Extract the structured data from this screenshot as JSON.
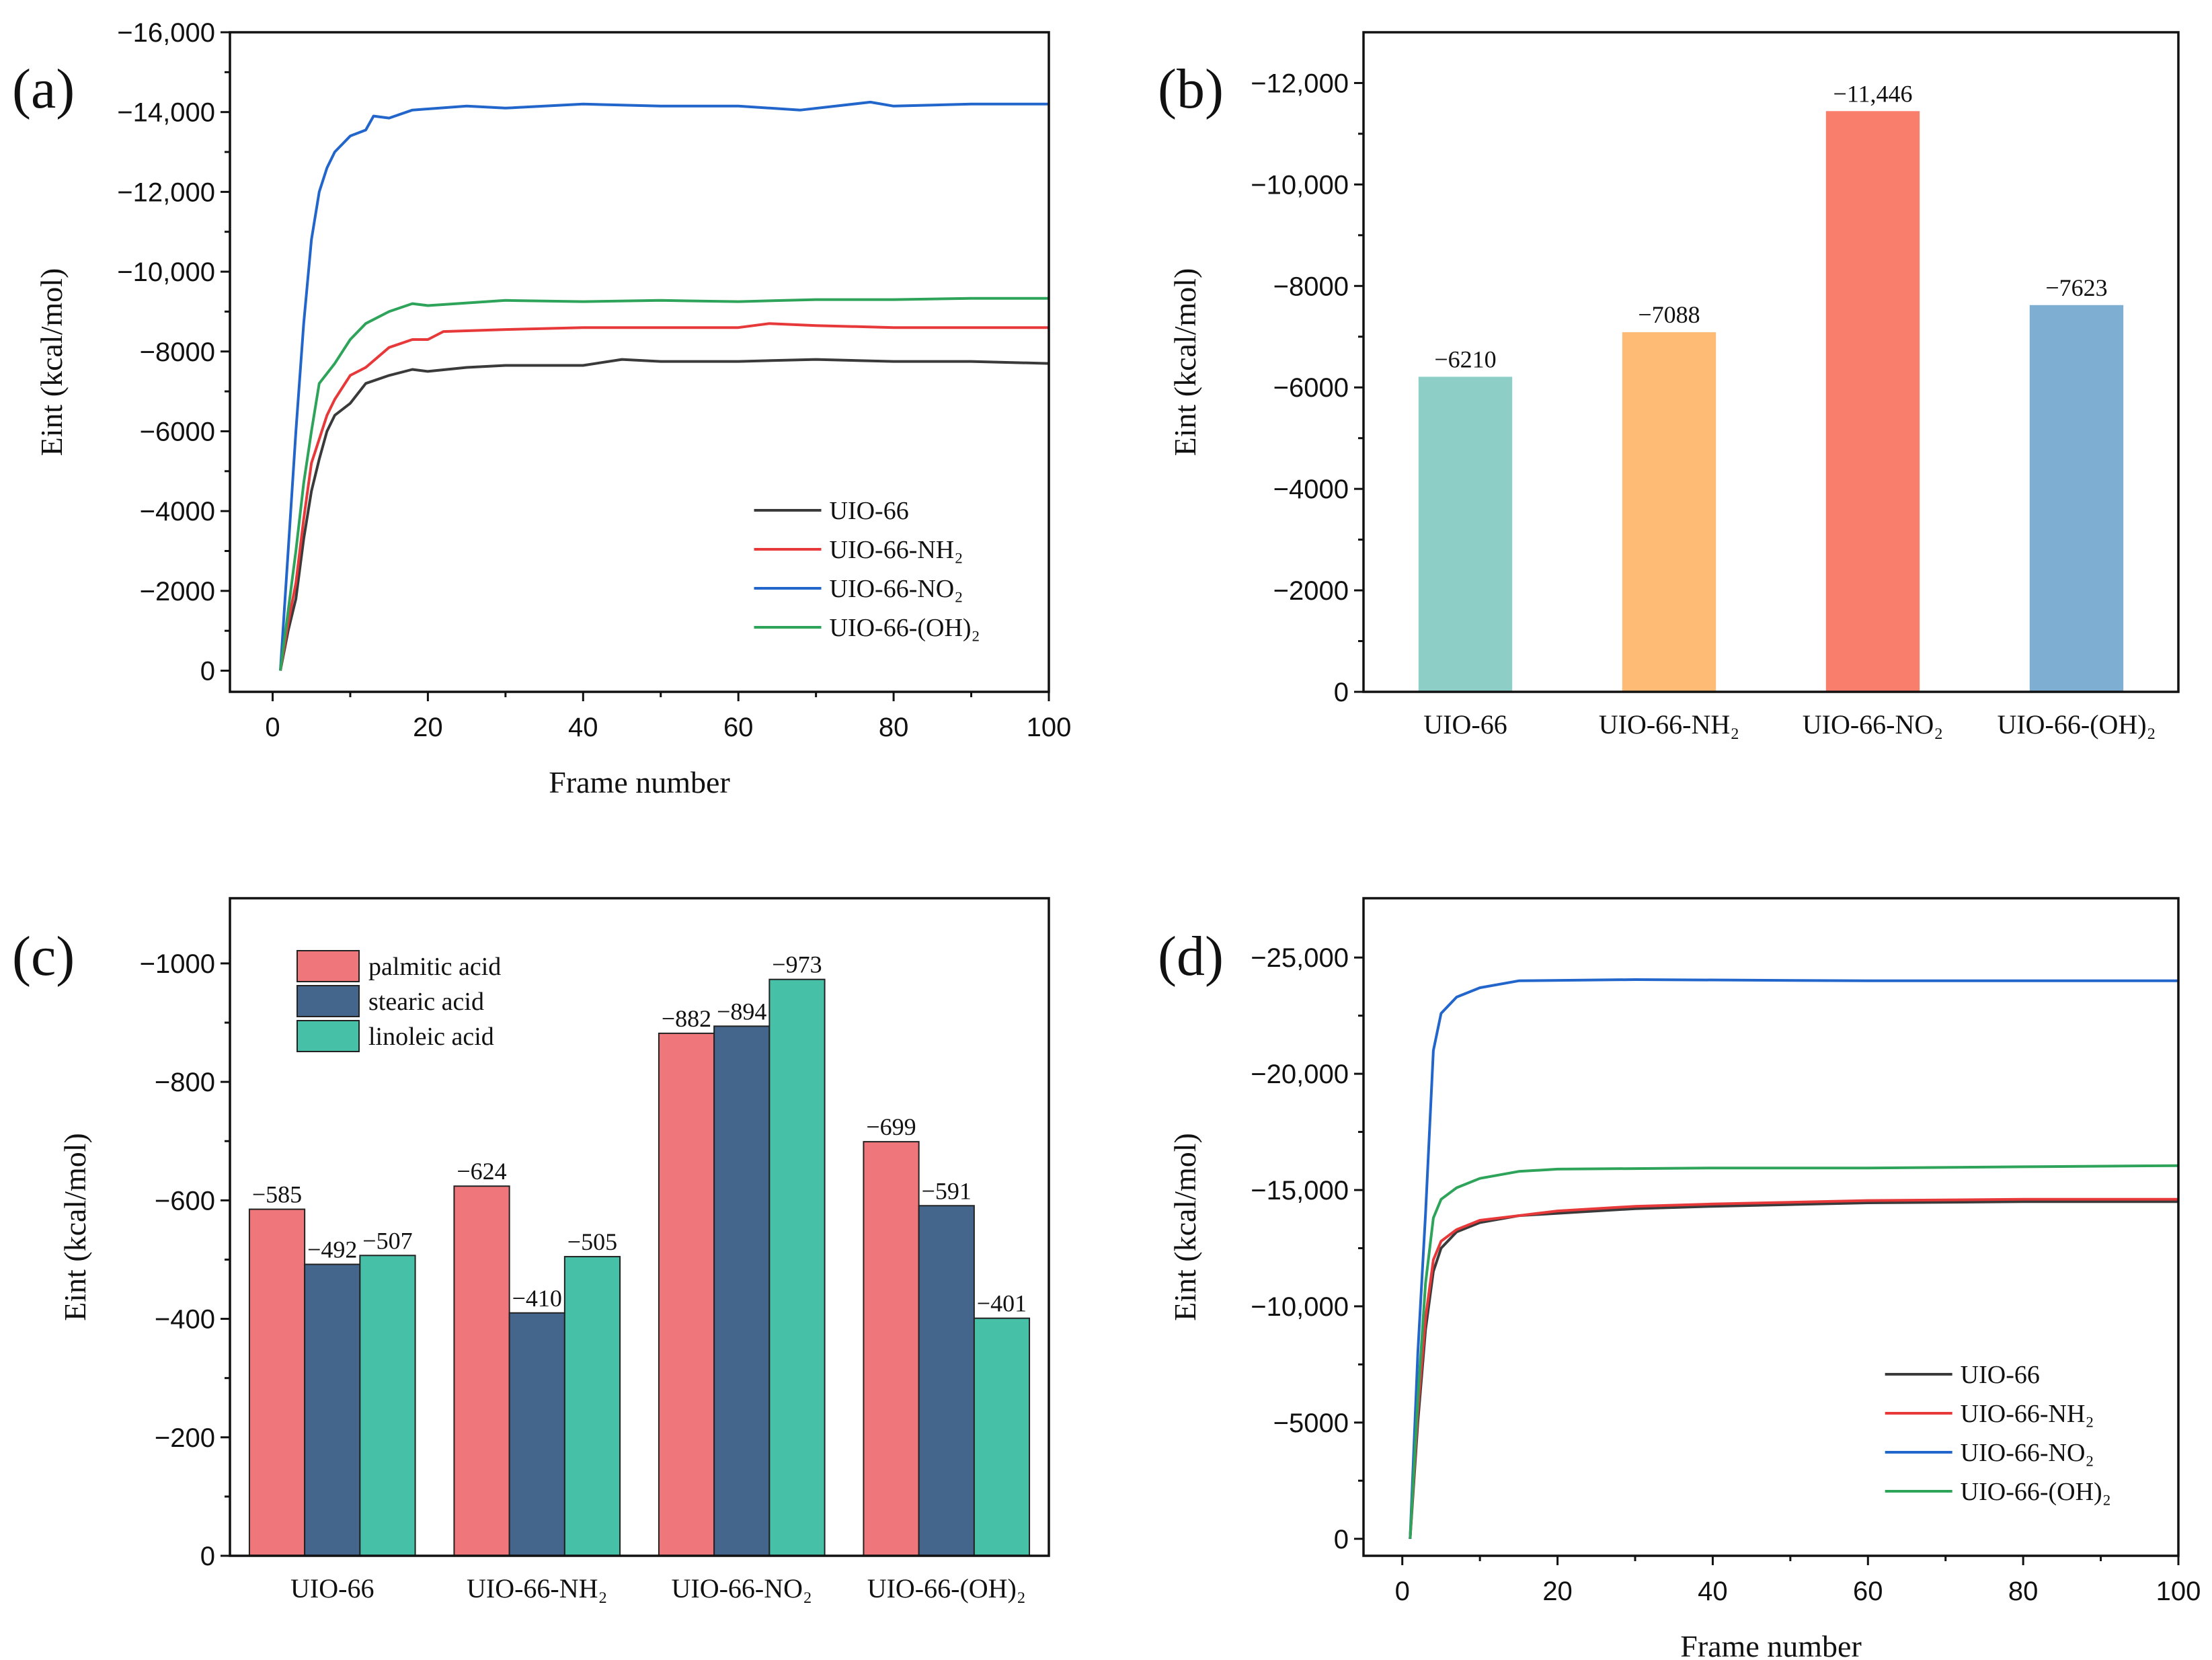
{
  "chart_data": [
    {
      "panel": "(a)",
      "type": "line",
      "xlabel": "Frame number",
      "ylabel": "Eint (kcal/mol)",
      "xlim": [
        -5.5,
        100
      ],
      "ylim": [
        530,
        -16000
      ],
      "xticks": [
        0,
        20,
        40,
        60,
        80,
        100
      ],
      "xtick_labels": [
        "0",
        "20",
        "40",
        "60",
        "80",
        "100"
      ],
      "yticks": [
        0,
        -2000,
        -4000,
        -6000,
        -8000,
        -10000,
        -12000,
        -14000,
        -16000
      ],
      "ytick_labels": [
        "0",
        "−2000",
        "−4000",
        "−6000",
        "−8000",
        "−10,000",
        "−12,000",
        "−14,000",
        "−16,000"
      ],
      "legend_position": "bottom-right",
      "series": [
        {
          "name": "UIO-66",
          "color": "#3a3a3a",
          "x": [
            1,
            2,
            3,
            4,
            5,
            6,
            7,
            8,
            10,
            12,
            15,
            18,
            20,
            25,
            30,
            40,
            45,
            50,
            60,
            70,
            80,
            90,
            100
          ],
          "y": [
            0,
            -1000,
            -1800,
            -3300,
            -4500,
            -5300,
            -6000,
            -6400,
            -6700,
            -7200,
            -7400,
            -7550,
            -7500,
            -7600,
            -7650,
            -7650,
            -7800,
            -7750,
            -7750,
            -7800,
            -7750,
            -7750,
            -7700
          ]
        },
        {
          "name": "UIO-66-NH₂",
          "color": "#e8393a",
          "x": [
            1,
            2,
            3,
            4,
            5,
            6,
            7,
            8,
            10,
            12,
            15,
            18,
            20,
            22,
            30,
            40,
            50,
            60,
            64,
            70,
            80,
            90,
            100
          ],
          "y": [
            0,
            -1200,
            -2200,
            -3800,
            -5200,
            -5800,
            -6400,
            -6800,
            -7400,
            -7600,
            -8100,
            -8300,
            -8300,
            -8500,
            -8550,
            -8600,
            -8600,
            -8600,
            -8700,
            -8650,
            -8600,
            -8600,
            -8600
          ]
        },
        {
          "name": "UIO-66-NO₂",
          "color": "#2266cc",
          "x": [
            1,
            2,
            3,
            4,
            5,
            6,
            7,
            8,
            10,
            12,
            13,
            15,
            18,
            25,
            30,
            40,
            50,
            60,
            68,
            77,
            80,
            90,
            100
          ],
          "y": [
            0,
            -3000,
            -6000,
            -8700,
            -10800,
            -12000,
            -12600,
            -13000,
            -13400,
            -13550,
            -13900,
            -13850,
            -14050,
            -14150,
            -14100,
            -14200,
            -14150,
            -14150,
            -14050,
            -14250,
            -14150,
            -14200,
            -14200
          ]
        },
        {
          "name": "UIO-66-(OH)₂",
          "color": "#2ea35a",
          "x": [
            1,
            2,
            3,
            4,
            5,
            6,
            8,
            10,
            12,
            15,
            18,
            20,
            30,
            40,
            50,
            60,
            70,
            80,
            90,
            100
          ],
          "y": [
            0,
            -1500,
            -3000,
            -4700,
            -6000,
            -7200,
            -7700,
            -8300,
            -8700,
            -9000,
            -9200,
            -9150,
            -9280,
            -9250,
            -9280,
            -9250,
            -9300,
            -9300,
            -9330,
            -9330
          ]
        }
      ]
    },
    {
      "panel": "(b)",
      "type": "bar",
      "ylabel": "Eint (kcal/mol)",
      "ylim": [
        0,
        -13000
      ],
      "yticks": [
        0,
        -2000,
        -4000,
        -6000,
        -8000,
        -10000,
        -12000
      ],
      "ytick_labels": [
        "0",
        "−2000",
        "−4000",
        "−6000",
        "−8000",
        "−10,000",
        "−12,000"
      ],
      "categories": [
        "UIO-66",
        "UIO-66-NH₂",
        "UIO-66-NO₂",
        "UIO-66-(OH)₂"
      ],
      "values": [
        -6210,
        -7088,
        -11446,
        -7623
      ],
      "value_labels": [
        "−6210",
        "−7088",
        "−11,446",
        "−7623"
      ],
      "colors": [
        "#8dcfc7",
        "#fdbb76",
        "#f97f6c",
        "#7eaed2"
      ]
    },
    {
      "panel": "(c)",
      "type": "bar",
      "ylabel": "Eint (kcal/mol)",
      "ylim": [
        0,
        -1110
      ],
      "yticks": [
        0,
        -200,
        -400,
        -600,
        -800,
        -1000
      ],
      "ytick_labels": [
        "0",
        "−200",
        "−400",
        "−600",
        "−800",
        "−1000"
      ],
      "categories": [
        "UIO-66",
        "UIO-66-NH₂",
        "UIO-66-NO₂",
        "UIO-66-(OH)₂"
      ],
      "legend_position": "top-left",
      "series": [
        {
          "name": "palmitic acid",
          "color": "#ef777b",
          "values": [
            -585,
            -624,
            -882,
            -699
          ],
          "value_labels": [
            "−585",
            "−624",
            "−882",
            "−699"
          ]
        },
        {
          "name": "stearic acid",
          "color": "#45668c",
          "values": [
            -492,
            -410,
            -894,
            -591
          ],
          "value_labels": [
            "−492",
            "−410",
            "−894",
            "−591"
          ]
        },
        {
          "name": "linoleic acid",
          "color": "#47c0a8",
          "values": [
            -507,
            -505,
            -973,
            -401
          ],
          "value_labels": [
            "−507",
            "−505",
            "−973",
            "−401"
          ]
        }
      ]
    },
    {
      "panel": "(d)",
      "type": "line",
      "xlabel": "Frame number",
      "ylabel": "Eint (kcal/mol)",
      "xlim": [
        -5,
        100
      ],
      "ylim": [
        730,
        -27550
      ],
      "xticks": [
        0,
        20,
        40,
        60,
        80,
        100
      ],
      "xtick_labels": [
        "0",
        "20",
        "40",
        "60",
        "80",
        "100"
      ],
      "yticks": [
        0,
        -5000,
        -10000,
        -15000,
        -20000,
        -25000
      ],
      "ytick_labels": [
        "0",
        "−5000",
        "−10,000",
        "−15,000",
        "−20,000",
        "−25,000"
      ],
      "legend_position": "bottom-right",
      "series": [
        {
          "name": "UIO-66",
          "color": "#3a3a3a",
          "x": [
            1,
            2,
            3,
            4,
            5,
            7,
            10,
            15,
            20,
            30,
            40,
            60,
            80,
            100
          ],
          "y": [
            0,
            -5000,
            -9000,
            -11500,
            -12500,
            -13200,
            -13600,
            -13900,
            -14000,
            -14200,
            -14300,
            -14450,
            -14500,
            -14500
          ]
        },
        {
          "name": "UIO-66-NH₂",
          "color": "#e8393a",
          "x": [
            1,
            2,
            3,
            4,
            5,
            7,
            10,
            15,
            20,
            30,
            40,
            60,
            80,
            100
          ],
          "y": [
            0,
            -5500,
            -9500,
            -12000,
            -12800,
            -13300,
            -13700,
            -13900,
            -14100,
            -14300,
            -14400,
            -14550,
            -14600,
            -14600
          ]
        },
        {
          "name": "UIO-66-NO₂",
          "color": "#2266cc",
          "x": [
            1,
            2,
            3,
            4,
            5,
            7,
            10,
            15,
            30,
            60,
            100
          ],
          "y": [
            0,
            -8000,
            -14000,
            -21000,
            -22600,
            -23300,
            -23700,
            -24000,
            -24050,
            -24000,
            -24000
          ]
        },
        {
          "name": "UIO-66-(OH)₂",
          "color": "#2ea35a",
          "x": [
            1,
            2,
            3,
            4,
            5,
            7,
            10,
            15,
            20,
            40,
            60,
            80,
            100
          ],
          "y": [
            0,
            -6000,
            -11000,
            -13800,
            -14600,
            -15100,
            -15500,
            -15800,
            -15900,
            -15950,
            -15950,
            -16000,
            -16050
          ]
        }
      ]
    }
  ]
}
